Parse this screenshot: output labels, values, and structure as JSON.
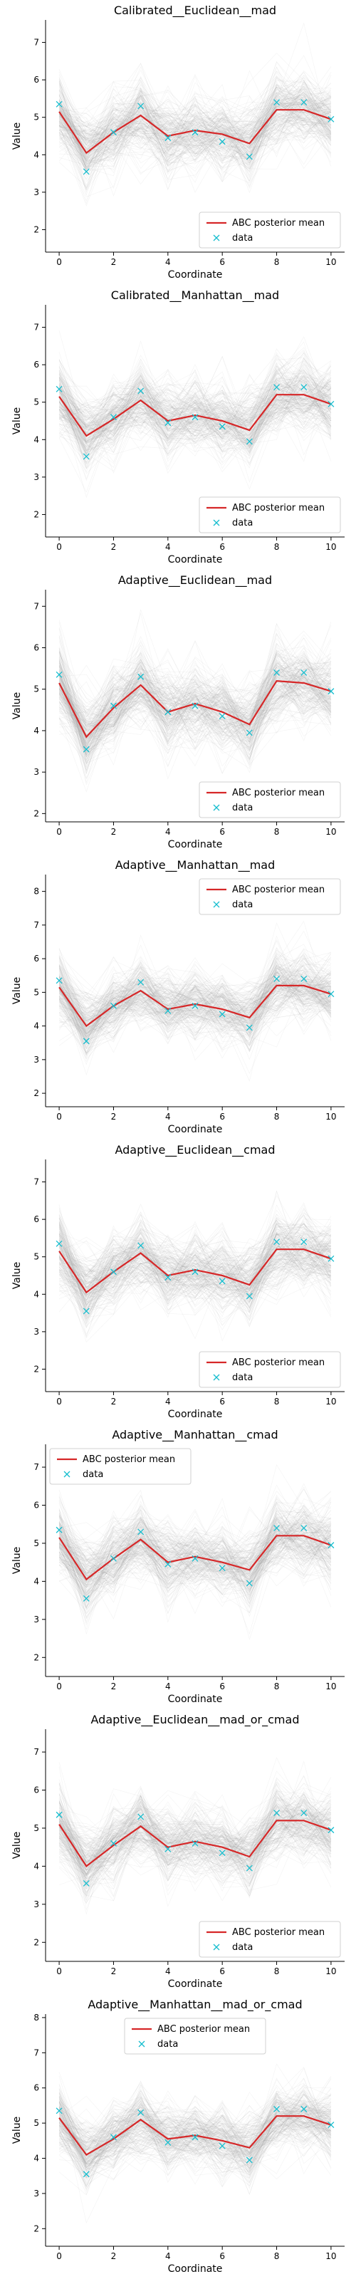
{
  "colors": {
    "mean_line": "#d62728",
    "data_marker": "#17becf",
    "samples": "#9a9a9a",
    "legend_border": "#d0d0d0"
  },
  "chart_data": [
    {
      "type": "line",
      "title": "Calibrated__Euclidean__mad",
      "xlabel": "Coordinate",
      "ylabel": "Value",
      "x": [
        0,
        1,
        2,
        3,
        4,
        5,
        6,
        7,
        8,
        9,
        10
      ],
      "xlim": [
        -0.5,
        10.5
      ],
      "ylim": [
        1.4,
        7.6
      ],
      "xticks": [
        0,
        2,
        4,
        6,
        8,
        10
      ],
      "yticks": [
        2,
        3,
        4,
        5,
        6,
        7
      ],
      "grid": false,
      "legend_position": "lower right",
      "band": [
        0.75,
        1.05
      ],
      "series": [
        {
          "name": "ABC posterior mean",
          "kind": "line",
          "values": [
            5.15,
            4.05,
            4.6,
            5.05,
            4.5,
            4.65,
            4.55,
            4.3,
            5.2,
            5.2,
            4.95
          ]
        },
        {
          "name": "data",
          "kind": "marker",
          "values": [
            5.35,
            3.55,
            4.6,
            5.3,
            4.45,
            4.6,
            4.35,
            3.95,
            5.4,
            5.4,
            4.95
          ]
        }
      ]
    },
    {
      "type": "line",
      "title": "Calibrated__Manhattan__mad",
      "xlabel": "Coordinate",
      "ylabel": "Value",
      "x": [
        0,
        1,
        2,
        3,
        4,
        5,
        6,
        7,
        8,
        9,
        10
      ],
      "xlim": [
        -0.5,
        10.5
      ],
      "ylim": [
        1.4,
        7.6
      ],
      "xticks": [
        0,
        2,
        4,
        6,
        8,
        10
      ],
      "yticks": [
        2,
        3,
        4,
        5,
        6,
        7
      ],
      "grid": false,
      "legend_position": "lower right",
      "band": [
        0.75,
        1.05
      ],
      "series": [
        {
          "name": "ABC posterior mean",
          "kind": "line",
          "values": [
            5.15,
            4.1,
            4.55,
            5.05,
            4.5,
            4.65,
            4.5,
            4.25,
            5.2,
            5.2,
            4.95
          ]
        },
        {
          "name": "data",
          "kind": "marker",
          "values": [
            5.35,
            3.55,
            4.6,
            5.3,
            4.45,
            4.6,
            4.35,
            3.95,
            5.4,
            5.4,
            4.95
          ]
        }
      ]
    },
    {
      "type": "line",
      "title": "Adaptive__Euclidean__mad",
      "xlabel": "Coordinate",
      "ylabel": "Value",
      "x": [
        0,
        1,
        2,
        3,
        4,
        5,
        6,
        7,
        8,
        9,
        10
      ],
      "xlim": [
        -0.5,
        10.5
      ],
      "ylim": [
        1.8,
        7.4
      ],
      "xticks": [
        0,
        2,
        4,
        6,
        8,
        10
      ],
      "yticks": [
        2,
        3,
        4,
        5,
        6,
        7
      ],
      "grid": false,
      "legend_position": "lower right",
      "band": [
        0.75,
        1.05
      ],
      "series": [
        {
          "name": "ABC posterior mean",
          "kind": "line",
          "values": [
            5.15,
            3.85,
            4.55,
            5.1,
            4.45,
            4.65,
            4.45,
            4.15,
            5.2,
            5.15,
            4.95
          ]
        },
        {
          "name": "data",
          "kind": "marker",
          "values": [
            5.35,
            3.55,
            4.6,
            5.3,
            4.45,
            4.6,
            4.35,
            3.95,
            5.4,
            5.4,
            4.95
          ]
        }
      ]
    },
    {
      "type": "line",
      "title": "Adaptive__Manhattan__mad",
      "xlabel": "Coordinate",
      "ylabel": "Value",
      "x": [
        0,
        1,
        2,
        3,
        4,
        5,
        6,
        7,
        8,
        9,
        10
      ],
      "xlim": [
        -0.5,
        10.5
      ],
      "ylim": [
        1.6,
        8.5
      ],
      "xticks": [
        0,
        2,
        4,
        6,
        8,
        10
      ],
      "yticks": [
        2,
        3,
        4,
        5,
        6,
        7,
        8
      ],
      "grid": false,
      "legend_position": "upper right",
      "band": [
        0.75,
        1.1
      ],
      "series": [
        {
          "name": "ABC posterior mean",
          "kind": "line",
          "values": [
            5.15,
            4.0,
            4.6,
            5.05,
            4.5,
            4.65,
            4.5,
            4.25,
            5.2,
            5.2,
            4.95
          ]
        },
        {
          "name": "data",
          "kind": "marker",
          "values": [
            5.35,
            3.55,
            4.6,
            5.3,
            4.45,
            4.6,
            4.35,
            3.95,
            5.4,
            5.4,
            4.95
          ]
        }
      ]
    },
    {
      "type": "line",
      "title": "Adaptive__Euclidean__cmad",
      "xlabel": "Coordinate",
      "ylabel": "Value",
      "x": [
        0,
        1,
        2,
        3,
        4,
        5,
        6,
        7,
        8,
        9,
        10
      ],
      "xlim": [
        -0.5,
        10.5
      ],
      "ylim": [
        1.4,
        7.6
      ],
      "xticks": [
        0,
        2,
        4,
        6,
        8,
        10
      ],
      "yticks": [
        2,
        3,
        4,
        5,
        6,
        7
      ],
      "grid": false,
      "legend_position": "lower right",
      "band": [
        0.75,
        1.05
      ],
      "series": [
        {
          "name": "ABC posterior mean",
          "kind": "line",
          "values": [
            5.15,
            4.05,
            4.6,
            5.1,
            4.5,
            4.65,
            4.5,
            4.25,
            5.2,
            5.2,
            4.95
          ]
        },
        {
          "name": "data",
          "kind": "marker",
          "values": [
            5.35,
            3.55,
            4.6,
            5.3,
            4.45,
            4.6,
            4.35,
            3.95,
            5.4,
            5.4,
            4.95
          ]
        }
      ]
    },
    {
      "type": "line",
      "title": "Adaptive__Manhattan__cmad",
      "xlabel": "Coordinate",
      "ylabel": "Value",
      "x": [
        0,
        1,
        2,
        3,
        4,
        5,
        6,
        7,
        8,
        9,
        10
      ],
      "xlim": [
        -0.5,
        10.5
      ],
      "ylim": [
        1.5,
        7.6
      ],
      "xticks": [
        0,
        2,
        4,
        6,
        8,
        10
      ],
      "yticks": [
        2,
        3,
        4,
        5,
        6,
        7
      ],
      "grid": false,
      "legend_position": "upper left",
      "band": [
        0.75,
        1.05
      ],
      "series": [
        {
          "name": "ABC posterior mean",
          "kind": "line",
          "values": [
            5.15,
            4.05,
            4.6,
            5.1,
            4.5,
            4.65,
            4.5,
            4.3,
            5.2,
            5.2,
            4.95
          ]
        },
        {
          "name": "data",
          "kind": "marker",
          "values": [
            5.35,
            3.55,
            4.6,
            5.3,
            4.45,
            4.6,
            4.35,
            3.95,
            5.4,
            5.4,
            4.95
          ]
        }
      ]
    },
    {
      "type": "line",
      "title": "Adaptive__Euclidean__mad_or_cmad",
      "xlabel": "Coordinate",
      "ylabel": "Value",
      "x": [
        0,
        1,
        2,
        3,
        4,
        5,
        6,
        7,
        8,
        9,
        10
      ],
      "xlim": [
        -0.5,
        10.5
      ],
      "ylim": [
        1.5,
        7.6
      ],
      "xticks": [
        0,
        2,
        4,
        6,
        8,
        10
      ],
      "yticks": [
        2,
        3,
        4,
        5,
        6,
        7
      ],
      "grid": false,
      "legend_position": "lower right",
      "band": [
        0.75,
        1.05
      ],
      "series": [
        {
          "name": "ABC posterior mean",
          "kind": "line",
          "values": [
            5.1,
            4.0,
            4.55,
            5.05,
            4.5,
            4.65,
            4.5,
            4.25,
            5.2,
            5.2,
            4.95
          ]
        },
        {
          "name": "data",
          "kind": "marker",
          "values": [
            5.35,
            3.55,
            4.6,
            5.3,
            4.45,
            4.6,
            4.35,
            3.95,
            5.4,
            5.4,
            4.95
          ]
        }
      ]
    },
    {
      "type": "line",
      "title": "Adaptive__Manhattan__mad_or_cmad",
      "xlabel": "Coordinate",
      "ylabel": "Value",
      "x": [
        0,
        1,
        2,
        3,
        4,
        5,
        6,
        7,
        8,
        9,
        10
      ],
      "xlim": [
        -0.5,
        10.5
      ],
      "ylim": [
        1.5,
        8.1
      ],
      "xticks": [
        0,
        2,
        4,
        6,
        8,
        10
      ],
      "yticks": [
        2,
        3,
        4,
        5,
        6,
        7,
        8
      ],
      "grid": false,
      "legend_position": "upper center",
      "band": [
        0.75,
        1.05
      ],
      "series": [
        {
          "name": "ABC posterior mean",
          "kind": "line",
          "values": [
            5.15,
            4.1,
            4.55,
            5.1,
            4.55,
            4.65,
            4.5,
            4.3,
            5.2,
            5.2,
            4.95
          ]
        },
        {
          "name": "data",
          "kind": "marker",
          "values": [
            5.35,
            3.55,
            4.6,
            5.3,
            4.45,
            4.6,
            4.35,
            3.95,
            5.4,
            5.4,
            4.95
          ]
        }
      ]
    }
  ]
}
